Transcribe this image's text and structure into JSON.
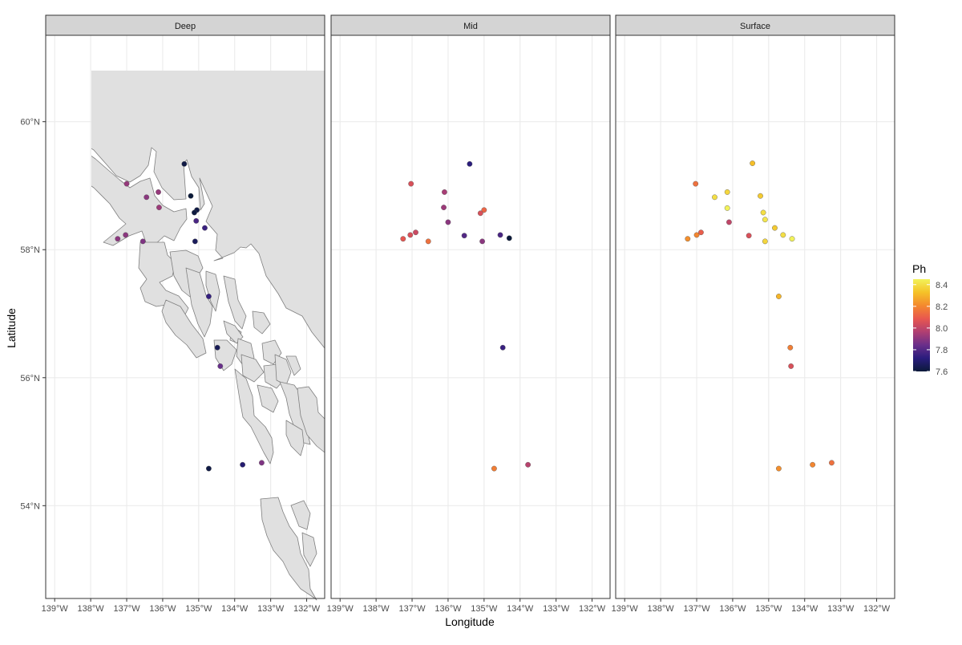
{
  "chart_data": {
    "type": "scatter",
    "subtype": "faceted map",
    "xlabel": "Longitude",
    "ylabel": "Latitude",
    "xlim": [
      -139.25,
      -131.5
    ],
    "ylim": [
      52.55,
      61.35
    ],
    "x_ticks": [
      -139,
      -138,
      -137,
      -136,
      -135,
      -134,
      -133,
      -132
    ],
    "x_tick_labels": [
      "139°W",
      "138°W",
      "137°W",
      "136°W",
      "135°W",
      "134°W",
      "133°W",
      "132°W"
    ],
    "y_ticks": [
      54,
      56,
      58,
      60
    ],
    "y_tick_labels": [
      "54°N",
      "56°N",
      "58°N",
      "60°N"
    ],
    "grid": true,
    "legend": {
      "title": "Ph",
      "position": "right",
      "range": [
        7.6,
        8.45
      ],
      "ticks": [
        7.6,
        7.8,
        8.0,
        8.2,
        8.4
      ],
      "tick_labels": [
        "7.6",
        "7.8",
        "8.0",
        "8.2",
        "8.4"
      ],
      "colormap": "inferno-like",
      "color_stops": [
        "#0b1a3a",
        "#2a1c7d",
        "#6a2f8a",
        "#b03f72",
        "#e8574f",
        "#f4892e",
        "#f5c228",
        "#f2f25a"
      ]
    },
    "colors": {
      "land": "#e0e0e0",
      "land_edge": "#7f7f7f",
      "strip_bg": "#d4d4d4",
      "grid": "#ebebeb"
    },
    "facets": [
      {
        "name": "Deep",
        "points": [
          {
            "lon": -137.0,
            "lat": 59.03,
            "ph": 7.92
          },
          {
            "lon": -136.45,
            "lat": 58.82,
            "ph": 7.9
          },
          {
            "lon": -136.12,
            "lat": 58.9,
            "ph": 7.92
          },
          {
            "lon": -136.1,
            "lat": 58.66,
            "ph": 7.93
          },
          {
            "lon": -135.4,
            "lat": 59.34,
            "ph": 7.62
          },
          {
            "lon": -135.22,
            "lat": 58.84,
            "ph": 7.6
          },
          {
            "lon": -135.05,
            "lat": 58.62,
            "ph": 7.62
          },
          {
            "lon": -135.12,
            "lat": 58.58,
            "ph": 7.61
          },
          {
            "lon": -135.07,
            "lat": 58.45,
            "ph": 7.78
          },
          {
            "lon": -134.83,
            "lat": 58.34,
            "ph": 7.75
          },
          {
            "lon": -135.1,
            "lat": 58.13,
            "ph": 7.66
          },
          {
            "lon": -137.25,
            "lat": 58.17,
            "ph": 7.9
          },
          {
            "lon": -137.03,
            "lat": 58.23,
            "ph": 7.9
          },
          {
            "lon": -136.55,
            "lat": 58.13,
            "ph": 7.88
          },
          {
            "lon": -134.72,
            "lat": 57.27,
            "ph": 7.74
          },
          {
            "lon": -134.48,
            "lat": 56.47,
            "ph": 7.65
          },
          {
            "lon": -134.4,
            "lat": 56.18,
            "ph": 7.84
          },
          {
            "lon": -134.72,
            "lat": 54.58,
            "ph": 7.62
          },
          {
            "lon": -133.78,
            "lat": 54.64,
            "ph": 7.7
          },
          {
            "lon": -133.25,
            "lat": 54.67,
            "ph": 7.88
          }
        ]
      },
      {
        "name": "Mid",
        "points": [
          {
            "lon": -137.03,
            "lat": 59.03,
            "ph": 8.05
          },
          {
            "lon": -136.1,
            "lat": 58.9,
            "ph": 7.95
          },
          {
            "lon": -136.12,
            "lat": 58.66,
            "ph": 7.93
          },
          {
            "lon": -135.4,
            "lat": 59.34,
            "ph": 7.72
          },
          {
            "lon": -135.0,
            "lat": 58.62,
            "ph": 8.12
          },
          {
            "lon": -135.1,
            "lat": 58.57,
            "ph": 8.05
          },
          {
            "lon": -136.0,
            "lat": 58.43,
            "ph": 7.9
          },
          {
            "lon": -137.25,
            "lat": 58.17,
            "ph": 8.08
          },
          {
            "lon": -137.05,
            "lat": 58.23,
            "ph": 8.05
          },
          {
            "lon": -136.9,
            "lat": 58.27,
            "ph": 8.02
          },
          {
            "lon": -136.55,
            "lat": 58.13,
            "ph": 8.15
          },
          {
            "lon": -135.55,
            "lat": 58.22,
            "ph": 7.8
          },
          {
            "lon": -135.05,
            "lat": 58.13,
            "ph": 7.9
          },
          {
            "lon": -134.55,
            "lat": 58.23,
            "ph": 7.78
          },
          {
            "lon": -134.3,
            "lat": 58.18,
            "ph": 7.6
          },
          {
            "lon": -134.48,
            "lat": 56.47,
            "ph": 7.75
          },
          {
            "lon": -134.72,
            "lat": 54.58,
            "ph": 8.18
          },
          {
            "lon": -133.78,
            "lat": 54.64,
            "ph": 7.98
          }
        ]
      },
      {
        "name": "Surface",
        "points": [
          {
            "lon": -137.03,
            "lat": 59.03,
            "ph": 8.15
          },
          {
            "lon": -136.5,
            "lat": 58.82,
            "ph": 8.4
          },
          {
            "lon": -136.15,
            "lat": 58.9,
            "ph": 8.38
          },
          {
            "lon": -136.15,
            "lat": 58.65,
            "ph": 8.45
          },
          {
            "lon": -135.45,
            "lat": 59.35,
            "ph": 8.32
          },
          {
            "lon": -135.23,
            "lat": 58.84,
            "ph": 8.35
          },
          {
            "lon": -135.15,
            "lat": 58.58,
            "ph": 8.4
          },
          {
            "lon": -135.1,
            "lat": 58.47,
            "ph": 8.42
          },
          {
            "lon": -134.83,
            "lat": 58.34,
            "ph": 8.35
          },
          {
            "lon": -134.6,
            "lat": 58.23,
            "ph": 8.4
          },
          {
            "lon": -134.35,
            "lat": 58.17,
            "ph": 8.45
          },
          {
            "lon": -135.1,
            "lat": 58.13,
            "ph": 8.38
          },
          {
            "lon": -136.1,
            "lat": 58.43,
            "ph": 8.0
          },
          {
            "lon": -135.55,
            "lat": 58.22,
            "ph": 8.05
          },
          {
            "lon": -137.25,
            "lat": 58.17,
            "ph": 8.22
          },
          {
            "lon": -137.0,
            "lat": 58.23,
            "ph": 8.2
          },
          {
            "lon": -136.88,
            "lat": 58.27,
            "ph": 8.1
          },
          {
            "lon": -134.72,
            "lat": 57.27,
            "ph": 8.3
          },
          {
            "lon": -134.4,
            "lat": 56.47,
            "ph": 8.18
          },
          {
            "lon": -134.38,
            "lat": 56.18,
            "ph": 8.05
          },
          {
            "lon": -134.72,
            "lat": 54.58,
            "ph": 8.22
          },
          {
            "lon": -133.78,
            "lat": 54.64,
            "ph": 8.2
          },
          {
            "lon": -133.25,
            "lat": 54.67,
            "ph": 8.15
          }
        ]
      }
    ]
  }
}
